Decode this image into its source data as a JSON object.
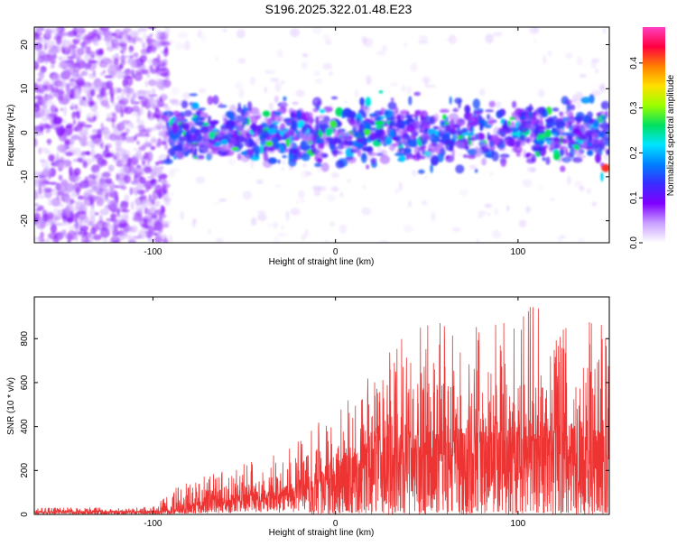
{
  "title": "S196.2025.322.01.48.E23",
  "chart_data": [
    {
      "type": "heatmap",
      "xlabel": "Height of straight line (km)",
      "ylabel": "Frequency (Hz)",
      "xlim": [
        -165,
        150
      ],
      "ylim": [
        -25,
        24
      ],
      "x_ticks": [
        -100,
        0,
        100
      ],
      "x_tick_labels": [
        "-100",
        "0",
        "100"
      ],
      "y_ticks": [
        -20,
        -10,
        0,
        10,
        20
      ],
      "y_tick_labels": [
        "-20",
        "-10",
        "0",
        "10",
        "20"
      ],
      "colorbar": {
        "label": "Normalized spectral amplitude",
        "range": [
          0,
          0.48
        ],
        "ticks": [
          0,
          0.1,
          0.2,
          0.3,
          0.4
        ],
        "tick_labels": [
          "0.0",
          "0.1",
          "0.2",
          "0.3",
          "0.4"
        ],
        "colors": [
          "#ffffff",
          "#c9a0ff",
          "#7f00ff",
          "#3a2bff",
          "#0080ff",
          "#00e5ff",
          "#00e060",
          "#9aff00",
          "#ffe000",
          "#ff8000",
          "#ff0040",
          "#ff40c0"
        ]
      },
      "regions": [
        {
          "name": "broadband noise",
          "x_range": [
            -165,
            -92
          ],
          "f_range": [
            -25,
            24
          ],
          "level": 0.06
        },
        {
          "name": "signal band",
          "x_range": [
            -92,
            150
          ],
          "f_range": [
            -8,
            8
          ],
          "level": 0.14
        },
        {
          "name": "peak",
          "x": 148,
          "f": -8,
          "level": 0.42
        }
      ]
    },
    {
      "type": "line",
      "xlabel": "Height of straight line (km)",
      "ylabel": "SNR (10 * v/v)",
      "xlim": [
        -165,
        150
      ],
      "ylim": [
        0,
        990
      ],
      "x_ticks": [
        -100,
        0,
        100
      ],
      "x_tick_labels": [
        "-100",
        "0",
        "100"
      ],
      "y_ticks": [
        0,
        200,
        400,
        600,
        800
      ],
      "y_tick_labels": [
        "0",
        "200",
        "400",
        "600",
        "800"
      ],
      "color": "#ee3333",
      "envelope": {
        "x": [
          -165,
          -100,
          -85,
          -75,
          -50,
          -30,
          -10,
          0,
          20,
          40,
          60,
          80,
          100,
          110,
          120,
          130,
          140,
          150
        ],
        "baseline": [
          10,
          10,
          15,
          40,
          60,
          80,
          130,
          180,
          230,
          260,
          260,
          270,
          280,
          290,
          270,
          280,
          260,
          240
        ],
        "peak": [
          30,
          35,
          150,
          170,
          230,
          280,
          440,
          450,
          650,
          870,
          880,
          870,
          880,
          990,
          860,
          880,
          880,
          860
        ]
      }
    }
  ]
}
